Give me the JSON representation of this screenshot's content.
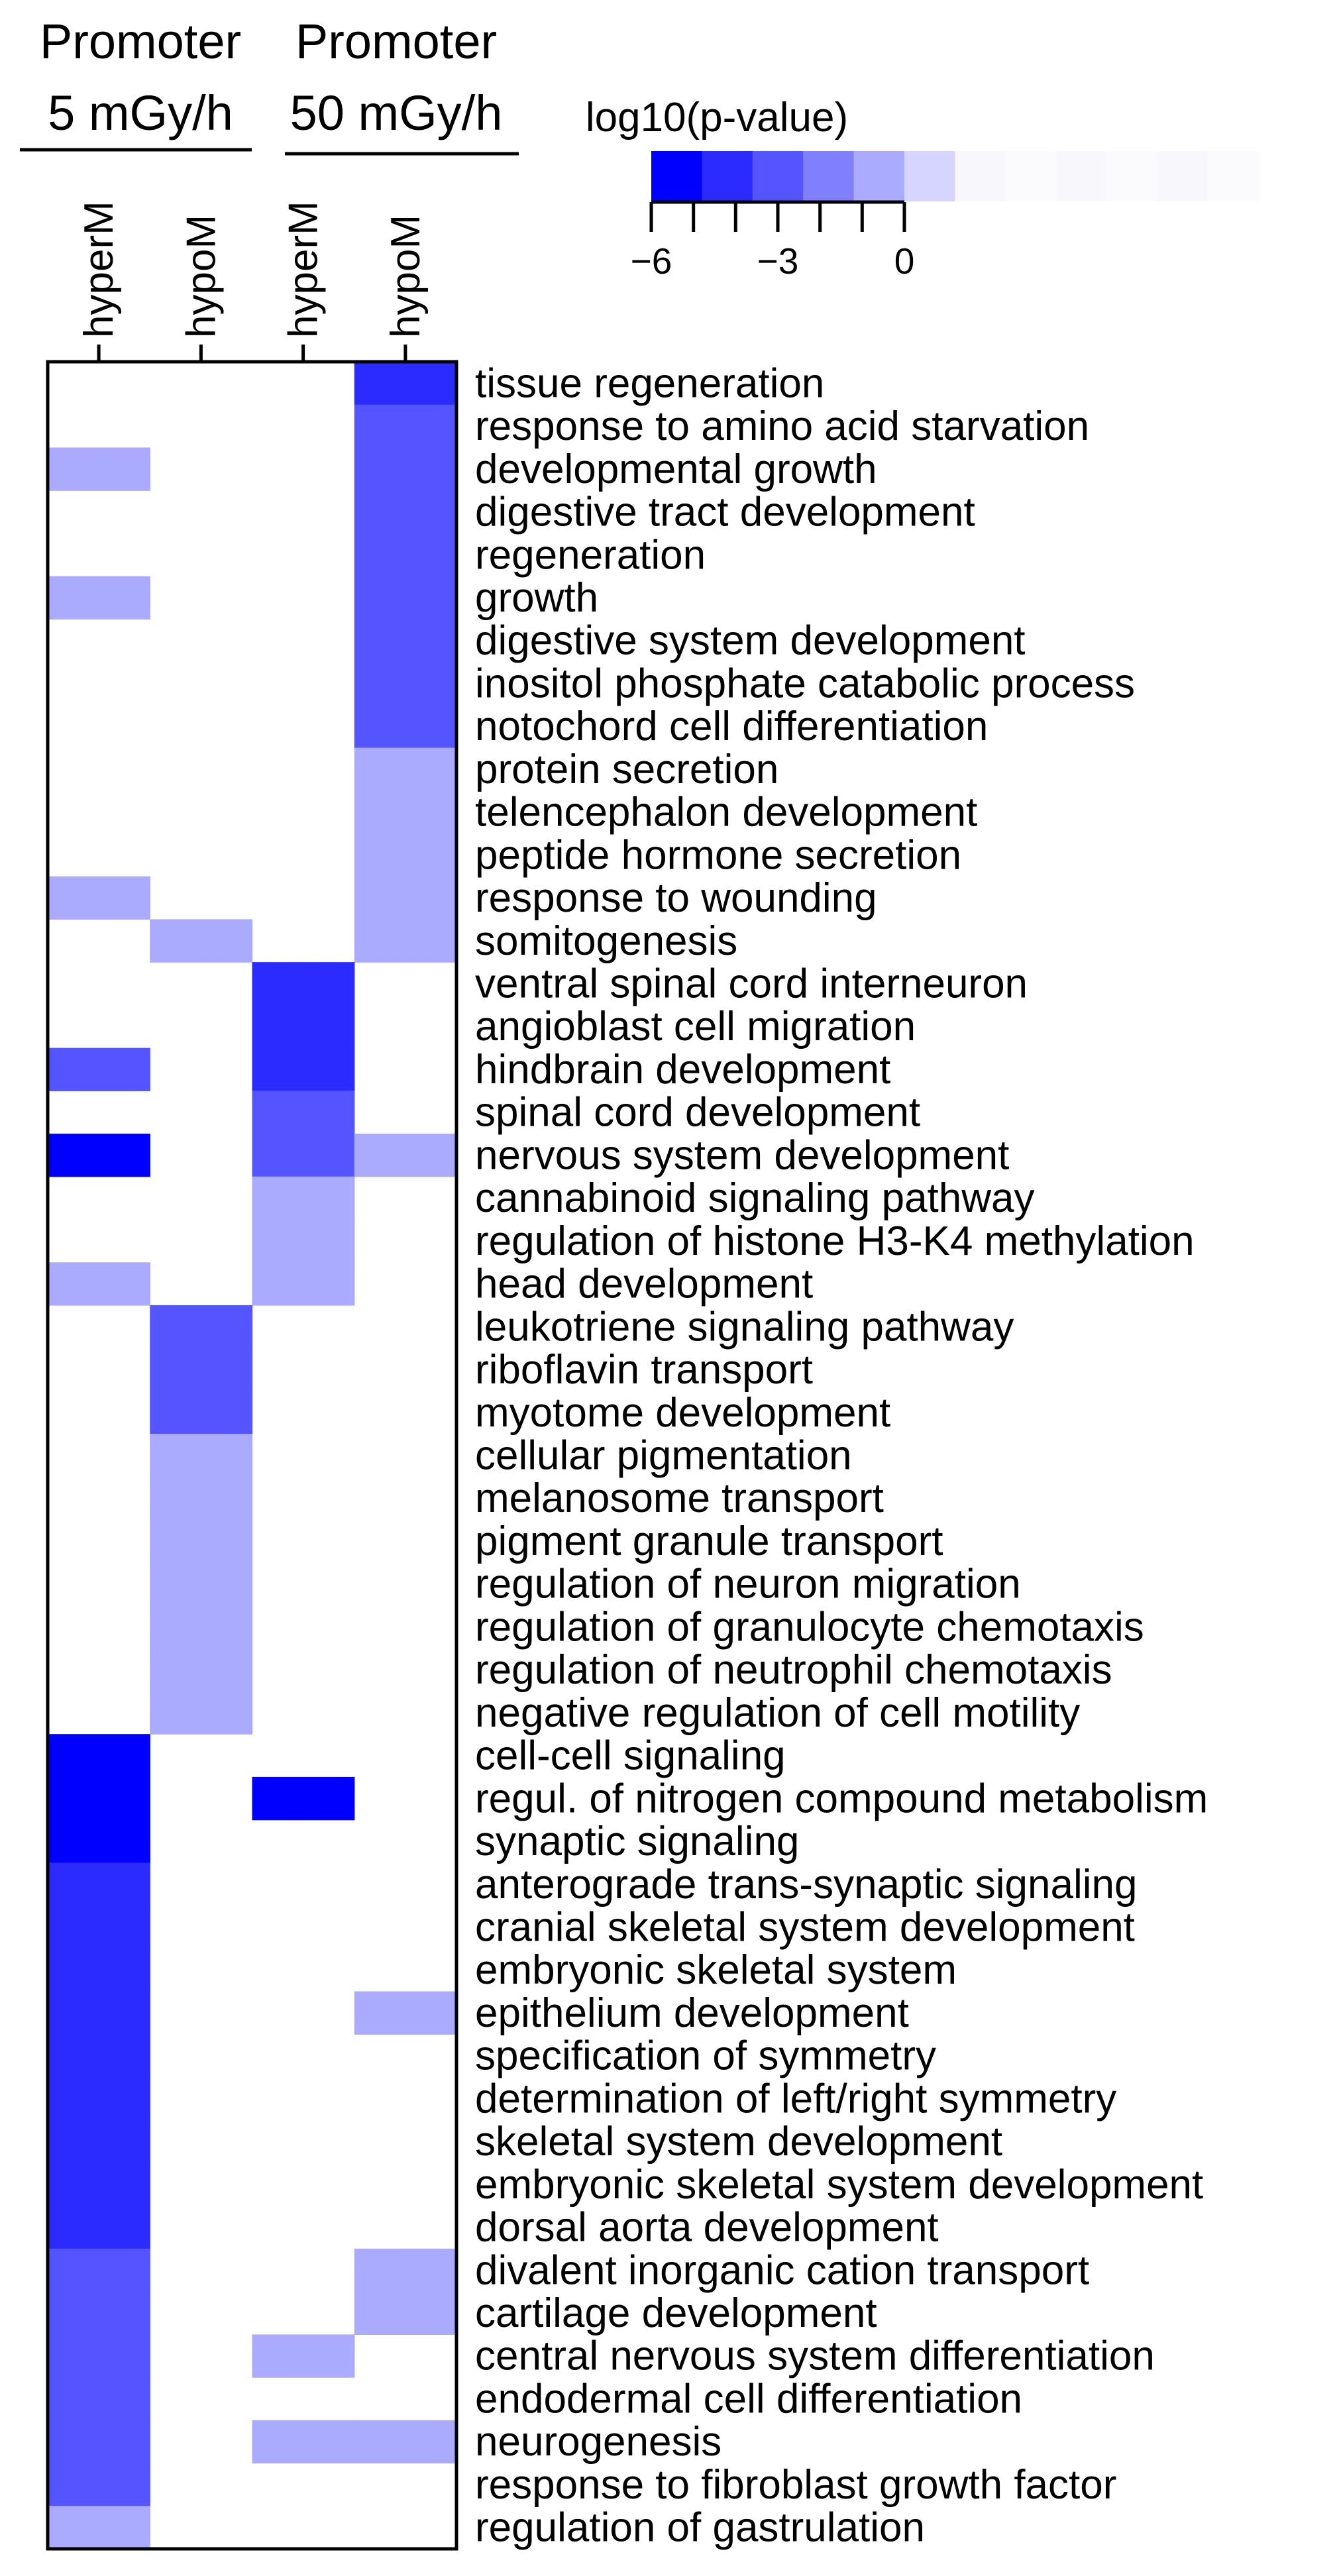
{
  "chart_data": {
    "type": "heatmap",
    "groups": [
      {
        "name": "Promoter",
        "subtitle": "5 mGy/h",
        "columns": [
          0,
          1
        ]
      },
      {
        "name": "Promoter",
        "subtitle": "50 mGy/h",
        "columns": [
          2,
          3
        ]
      }
    ],
    "columns": [
      "hyperM",
      "hypoM",
      "hyperM",
      "hypoM"
    ],
    "rows": [
      "tissue regeneration",
      "response to amino acid starvation",
      "developmental growth",
      "digestive tract development",
      "regeneration",
      "growth",
      "digestive system development",
      "inositol phosphate catabolic process",
      "notochord cell differentiation",
      "protein secretion",
      "telencephalon development",
      "peptide hormone secretion",
      "response to wounding",
      "somitogenesis",
      "ventral spinal cord interneuron",
      "angioblast cell migration",
      "hindbrain development",
      "spinal cord development",
      "nervous system development",
      "cannabinoid signaling pathway",
      "regulation of histone H3-K4 methylation",
      "head development",
      "leukotriene signaling pathway",
      "riboflavin transport",
      "myotome development",
      "cellular pigmentation",
      "melanosome transport",
      "pigment granule transport",
      "regulation of neuron migration",
      "regulation of granulocyte chemotaxis",
      "regulation of neutrophil chemotaxis",
      "negative regulation of cell motility",
      "cell-cell signaling",
      "regul. of nitrogen compound metabolism",
      "synaptic signaling",
      "anterograde trans-synaptic signaling",
      "cranial skeletal system development",
      "embryonic skeletal system",
      "epithelium development",
      "specification of symmetry",
      "determination of left/right symmetry",
      "skeletal system development",
      "embryonic skeletal system development",
      "dorsal aorta development",
      "divalent inorganic cation transport",
      "cartilage development",
      "central nervous system differentiation",
      "endodermal cell differentiation",
      "neurogenesis",
      "response to fibroblast growth factor",
      "regulation of gastrulation"
    ],
    "values": [
      [
        0,
        0,
        0,
        -5
      ],
      [
        0,
        0,
        0,
        -4
      ],
      [
        -2,
        0,
        0,
        -4
      ],
      [
        0,
        0,
        0,
        -4
      ],
      [
        0,
        0,
        0,
        -4
      ],
      [
        -2,
        0,
        0,
        -4
      ],
      [
        0,
        0,
        0,
        -4
      ],
      [
        0,
        0,
        0,
        -4
      ],
      [
        0,
        0,
        0,
        -4
      ],
      [
        0,
        0,
        0,
        -2
      ],
      [
        0,
        0,
        0,
        -2
      ],
      [
        0,
        0,
        0,
        -2
      ],
      [
        -2,
        0,
        0,
        -2
      ],
      [
        0,
        -2,
        0,
        -2
      ],
      [
        0,
        0,
        -5,
        0
      ],
      [
        0,
        0,
        -5,
        0
      ],
      [
        -4,
        0,
        -5,
        0
      ],
      [
        0,
        0,
        -4,
        0
      ],
      [
        -6,
        0,
        -4,
        -2
      ],
      [
        0,
        0,
        -2,
        0
      ],
      [
        0,
        0,
        -2,
        0
      ],
      [
        -2,
        0,
        -2,
        0
      ],
      [
        0,
        -4,
        0,
        0
      ],
      [
        0,
        -4,
        0,
        0
      ],
      [
        0,
        -4,
        0,
        0
      ],
      [
        0,
        -2,
        0,
        0
      ],
      [
        0,
        -2,
        0,
        0
      ],
      [
        0,
        -2,
        0,
        0
      ],
      [
        0,
        -2,
        0,
        0
      ],
      [
        0,
        -2,
        0,
        0
      ],
      [
        0,
        -2,
        0,
        0
      ],
      [
        0,
        -2,
        0,
        0
      ],
      [
        -6,
        0,
        0,
        0
      ],
      [
        -6,
        0,
        -6,
        0
      ],
      [
        -6,
        0,
        0,
        0
      ],
      [
        -5,
        0,
        0,
        0
      ],
      [
        -5,
        0,
        0,
        0
      ],
      [
        -5,
        0,
        0,
        0
      ],
      [
        -5,
        0,
        0,
        -2
      ],
      [
        -5,
        0,
        0,
        0
      ],
      [
        -5,
        0,
        0,
        0
      ],
      [
        -5,
        0,
        0,
        0
      ],
      [
        -5,
        0,
        0,
        0
      ],
      [
        -5,
        0,
        0,
        0
      ],
      [
        -4,
        0,
        0,
        -2
      ],
      [
        -4,
        0,
        0,
        -2
      ],
      [
        -4,
        0,
        -2,
        0
      ],
      [
        -4,
        0,
        0,
        0
      ],
      [
        -4,
        0,
        -2,
        -2
      ],
      [
        -4,
        0,
        0,
        0
      ],
      [
        -2,
        0,
        0,
        0
      ]
    ],
    "colorscale": {
      "title": "log10(p-value)",
      "range": [
        -6,
        0
      ],
      "ticks": [
        -6,
        -3,
        0
      ],
      "tick_labels": [
        "−6",
        "−3",
        "0"
      ],
      "low_color": "#0000ff",
      "high_color": "#ffffff"
    }
  }
}
